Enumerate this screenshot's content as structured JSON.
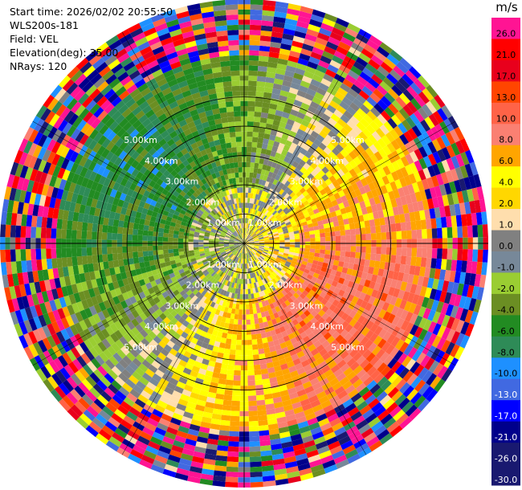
{
  "metadata": {
    "start_time": "Start time: 2026/02/02 20:55:50",
    "instrument": "WLS200s-181",
    "field": "Field: VEL",
    "elevation": "Elevation(deg): 35.00",
    "nrays": "NRays: 120"
  },
  "chart_data": {
    "type": "heatmap",
    "projection": "polar-ppi",
    "field": "VEL",
    "units": "m/s",
    "nrays": 120,
    "elevation_deg": 35.0,
    "range_rings_km": [
      1.0,
      2.0,
      3.0,
      4.0,
      5.0
    ],
    "ring_labels": [
      "1.00km",
      "2.00km",
      "3.00km",
      "4.00km",
      "5.00km"
    ],
    "max_range_km": 5.0,
    "colorbar": {
      "title": "m/s",
      "ticks": [
        "26.0",
        "21.0",
        "17.0",
        "13.0",
        "10.0",
        "8.0",
        "6.0",
        "4.0",
        "2.0",
        "1.0",
        "0.0",
        "-1.0",
        "-2.0",
        "-4.0",
        "-6.0",
        "-8.0",
        "-10.0",
        "-13.0",
        "-17.0",
        "-21.0",
        "-26.0",
        "-30.0"
      ],
      "colors": [
        "#ff1493",
        "#ff0000",
        "#e8001c",
        "#ff4500",
        "#ff6347",
        "#fa8072",
        "#ffa500",
        "#ffff00",
        "#ffd700",
        "#ffdead",
        "#808080",
        "#778899",
        "#9acd32",
        "#6b8e23",
        "#228b22",
        "#2e8b57",
        "#1e90ff",
        "#4169e1",
        "#0000ff",
        "#00008b",
        "#191970",
        "#191970"
      ]
    },
    "legend_placement": "right",
    "grid": true
  }
}
